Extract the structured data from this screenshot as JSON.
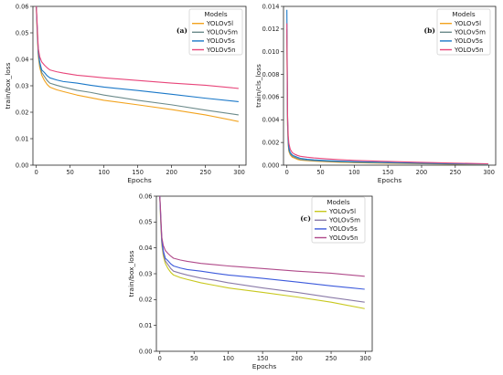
{
  "chart_data": [
    {
      "type": "line",
      "panel_label": "(a)",
      "xlabel": "Epochs",
      "ylabel": "train/box_loss",
      "xlim": [
        -5,
        310
      ],
      "ylim": [
        0,
        0.06
      ],
      "xticks": [
        "0",
        "50",
        "100",
        "150",
        "200",
        "250",
        "300"
      ],
      "yticks": [
        "0.00",
        "0.01",
        "0.02",
        "0.03",
        "0.04",
        "0.05",
        "0.06"
      ],
      "grid": false,
      "legend": {
        "title": "Models",
        "placement": "top-right"
      },
      "x": [
        0,
        1,
        2,
        3,
        5,
        8,
        12,
        16,
        20,
        30,
        40,
        60,
        80,
        100,
        150,
        200,
        250,
        299
      ],
      "series": [
        {
          "name": "YOLOv5l",
          "color": "#f2a31e",
          "values": [
            0.06,
            0.052,
            0.046,
            0.041,
            0.037,
            0.034,
            0.032,
            0.0305,
            0.0295,
            0.0285,
            0.0278,
            0.0265,
            0.0255,
            0.0245,
            0.0228,
            0.021,
            0.019,
            0.0165
          ]
        },
        {
          "name": "YOLOv5m",
          "color": "#6b8a8a",
          "values": [
            0.06,
            0.053,
            0.047,
            0.042,
            0.038,
            0.035,
            0.0335,
            0.032,
            0.031,
            0.0302,
            0.0295,
            0.0283,
            0.0275,
            0.0265,
            0.0245,
            0.0228,
            0.0208,
            0.019
          ]
        },
        {
          "name": "YOLOv5s",
          "color": "#1a78c8",
          "values": [
            0.06,
            0.054,
            0.048,
            0.043,
            0.039,
            0.036,
            0.035,
            0.0338,
            0.033,
            0.0322,
            0.0316,
            0.031,
            0.0302,
            0.0295,
            0.0282,
            0.0268,
            0.0253,
            0.024
          ]
        },
        {
          "name": "YOLOv5n",
          "color": "#e8457a",
          "values": [
            0.06,
            0.055,
            0.049,
            0.044,
            0.041,
            0.039,
            0.0378,
            0.0368,
            0.036,
            0.0353,
            0.0348,
            0.034,
            0.0335,
            0.033,
            0.032,
            0.031,
            0.0302,
            0.029
          ]
        }
      ]
    },
    {
      "type": "line",
      "panel_label": "(b)",
      "xlabel": "Epochs",
      "ylabel": "train/cls_loss",
      "xlim": [
        -5,
        310
      ],
      "ylim": [
        0,
        0.014
      ],
      "xticks": [
        "0",
        "50",
        "100",
        "150",
        "200",
        "250",
        "300"
      ],
      "yticks": [
        "0.000",
        "0.002",
        "0.004",
        "0.006",
        "0.008",
        "0.010",
        "0.012",
        "0.014"
      ],
      "grid": false,
      "legend": {
        "title": "Models",
        "placement": "top-right"
      },
      "x": [
        0,
        1,
        2,
        3,
        5,
        8,
        12,
        16,
        20,
        30,
        40,
        60,
        80,
        100,
        150,
        200,
        250,
        299
      ],
      "series": [
        {
          "name": "YOLOv5l",
          "color": "#f2a31e",
          "values": [
            0.0115,
            0.0035,
            0.0018,
            0.0012,
            0.0009,
            0.0007,
            0.0006,
            0.0005,
            0.00045,
            0.0004,
            0.00036,
            0.0003,
            0.00025,
            0.00022,
            0.00016,
            0.00012,
            8e-05,
            4e-05
          ]
        },
        {
          "name": "YOLOv5m",
          "color": "#6b8a8a",
          "values": [
            0.012,
            0.0037,
            0.0019,
            0.0013,
            0.001,
            0.0008,
            0.00068,
            0.00058,
            0.0005,
            0.00044,
            0.0004,
            0.00034,
            0.0003,
            0.00026,
            0.0002,
            0.00015,
            0.0001,
            6e-05
          ]
        },
        {
          "name": "YOLOv5s",
          "color": "#1a78c8",
          "values": [
            0.0137,
            0.0042,
            0.0022,
            0.0015,
            0.0011,
            0.0009,
            0.00078,
            0.00068,
            0.0006,
            0.00052,
            0.00047,
            0.0004,
            0.00035,
            0.00031,
            0.00024,
            0.00018,
            0.00013,
            8e-05
          ]
        },
        {
          "name": "YOLOv5n",
          "color": "#e8457a",
          "values": [
            0.0125,
            0.0045,
            0.0026,
            0.0019,
            0.0014,
            0.0011,
            0.00095,
            0.00085,
            0.00078,
            0.0007,
            0.00064,
            0.00055,
            0.00048,
            0.00042,
            0.00033,
            0.00025,
            0.00018,
            0.00012
          ]
        }
      ]
    },
    {
      "type": "line",
      "panel_label": "(c)",
      "xlabel": "Epochs",
      "ylabel": "train/box_loss",
      "xlim": [
        -5,
        310
      ],
      "ylim": [
        0,
        0.06
      ],
      "xticks": [
        "0",
        "50",
        "100",
        "150",
        "200",
        "250",
        "300"
      ],
      "yticks": [
        "0.00",
        "0.01",
        "0.02",
        "0.03",
        "0.04",
        "0.05",
        "0.06"
      ],
      "grid": false,
      "legend": {
        "title": "Models",
        "placement": "top-right"
      },
      "x": [
        0,
        1,
        2,
        3,
        5,
        8,
        12,
        16,
        20,
        30,
        40,
        60,
        80,
        100,
        150,
        200,
        250,
        299
      ],
      "series": [
        {
          "name": "YOLOv5l",
          "color": "#c8c81e",
          "values": [
            0.06,
            0.052,
            0.046,
            0.041,
            0.037,
            0.034,
            0.032,
            0.0305,
            0.0295,
            0.0285,
            0.0278,
            0.0265,
            0.0255,
            0.0245,
            0.0228,
            0.021,
            0.019,
            0.0165
          ]
        },
        {
          "name": "YOLOv5m",
          "color": "#8a7aa8",
          "values": [
            0.06,
            0.053,
            0.047,
            0.042,
            0.038,
            0.035,
            0.0335,
            0.032,
            0.031,
            0.0302,
            0.0295,
            0.0283,
            0.0275,
            0.0265,
            0.0245,
            0.0228,
            0.0208,
            0.019
          ]
        },
        {
          "name": "YOLOv5s",
          "color": "#3c5adc",
          "values": [
            0.06,
            0.054,
            0.048,
            0.043,
            0.039,
            0.036,
            0.035,
            0.0338,
            0.033,
            0.0322,
            0.0316,
            0.031,
            0.0302,
            0.0295,
            0.0282,
            0.0268,
            0.0253,
            0.024
          ]
        },
        {
          "name": "YOLOv5n",
          "color": "#b04a8a",
          "values": [
            0.06,
            0.055,
            0.049,
            0.044,
            0.041,
            0.039,
            0.0378,
            0.0368,
            0.036,
            0.0353,
            0.0348,
            0.034,
            0.0335,
            0.033,
            0.032,
            0.031,
            0.0302,
            0.029
          ]
        }
      ]
    }
  ]
}
